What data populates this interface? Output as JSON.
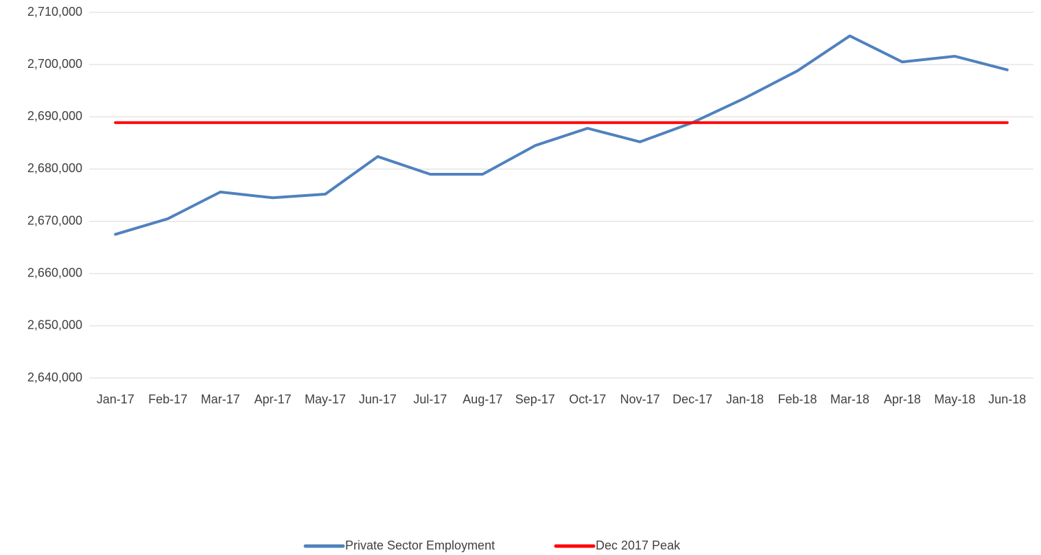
{
  "chart_data": {
    "type": "line",
    "categories": [
      "Jan-17",
      "Feb-17",
      "Mar-17",
      "Apr-17",
      "May-17",
      "Jun-17",
      "Jul-17",
      "Aug-17",
      "Sep-17",
      "Oct-17",
      "Nov-17",
      "Dec-17",
      "Jan-18",
      "Feb-18",
      "Mar-18",
      "Apr-18",
      "May-18",
      "Jun-18"
    ],
    "series": [
      {
        "name": "Private Sector Employment",
        "color": "#4f81bd",
        "values": [
          2667500,
          2670500,
          2675600,
          2674500,
          2675200,
          2682400,
          2679000,
          2679000,
          2684500,
          2687800,
          2685200,
          2688900,
          2693600,
          2698800,
          2705500,
          2700500,
          2701600,
          2699000
        ]
      },
      {
        "name": "Dec 2017 Peak",
        "color": "#ff0000",
        "values": [
          2688900,
          2688900,
          2688900,
          2688900,
          2688900,
          2688900,
          2688900,
          2688900,
          2688900,
          2688900,
          2688900,
          2688900,
          2688900,
          2688900,
          2688900,
          2688900,
          2688900,
          2688900
        ]
      }
    ],
    "ylim": [
      2640000,
      2710000
    ],
    "yticks": [
      {
        "value": 2640000,
        "label": "2,640,000"
      },
      {
        "value": 2650000,
        "label": "2,650,000"
      },
      {
        "value": 2660000,
        "label": "2,660,000"
      },
      {
        "value": 2670000,
        "label": "2,670,000"
      },
      {
        "value": 2680000,
        "label": "2,680,000"
      },
      {
        "value": 2690000,
        "label": "2,690,000"
      },
      {
        "value": 2700000,
        "label": "2,700,000"
      },
      {
        "value": 2710000,
        "label": "2,710,000"
      }
    ],
    "grid": true,
    "legend": "bottom"
  }
}
